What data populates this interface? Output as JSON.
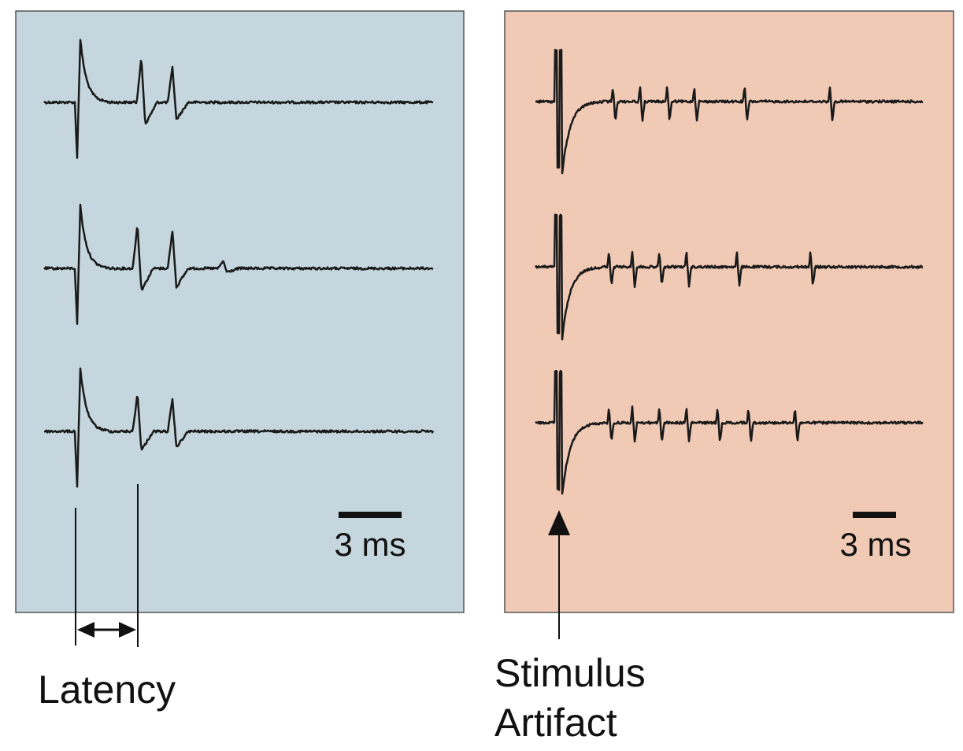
{
  "colors": {
    "left_panel_fill": "#c5d6de",
    "right_panel_fill": "#f1cab6",
    "panel_border": "#555555",
    "trace": "#1a1a1a"
  },
  "left_panel": {
    "scalebar_label": "3 ms",
    "annotation": "Latency",
    "traces": [
      {
        "spikes": [
          {
            "t": 0.1,
            "amp": 1.0
          },
          {
            "t": 0.25,
            "amp": 0.7
          },
          {
            "t": 0.33,
            "amp": 0.55
          }
        ]
      },
      {
        "spikes": [
          {
            "t": 0.1,
            "amp": 1.0
          },
          {
            "t": 0.24,
            "amp": 0.7
          },
          {
            "t": 0.33,
            "amp": 0.6
          },
          {
            "t": 0.46,
            "amp": 0.12
          }
        ]
      },
      {
        "spikes": [
          {
            "t": 0.1,
            "amp": 1.0
          },
          {
            "t": 0.24,
            "amp": 0.6
          },
          {
            "t": 0.33,
            "amp": 0.5
          }
        ]
      }
    ]
  },
  "right_panel": {
    "scalebar_label": "3 ms",
    "annotation_line1": "Stimulus",
    "annotation_line2": "Artifact",
    "traces": [
      {
        "spikes": [
          0.2,
          0.27,
          0.34,
          0.41,
          0.54,
          0.76
        ]
      },
      {
        "spikes": [
          0.19,
          0.25,
          0.32,
          0.39,
          0.52,
          0.71
        ]
      },
      {
        "spikes": [
          0.19,
          0.25,
          0.32,
          0.39,
          0.47,
          0.55,
          0.67
        ]
      }
    ]
  }
}
